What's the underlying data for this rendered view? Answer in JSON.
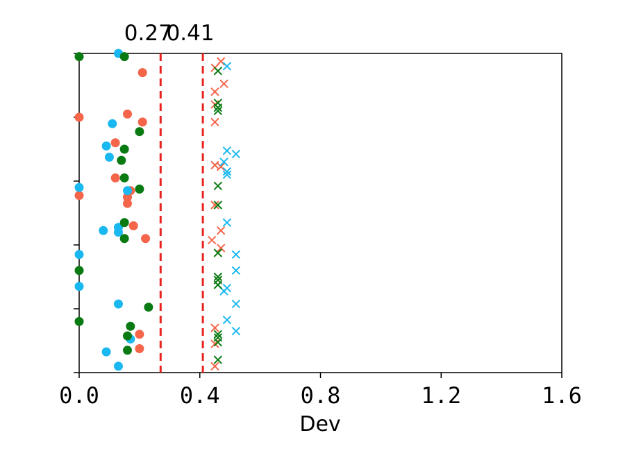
{
  "chart_data": {
    "type": "scatter",
    "xlabel": "Dev",
    "ylabel": "",
    "xlim": [
      0.0,
      1.6
    ],
    "ylim": [
      0,
      100
    ],
    "x_tick_labels": [
      "0.0",
      "0.4",
      "0.8",
      "1.2",
      "1.6"
    ],
    "x_tick_values": [
      0.0,
      0.4,
      0.8,
      1.2,
      1.6
    ],
    "y_tick_values": [
      0,
      20,
      40,
      60,
      80,
      100
    ],
    "y_tick_labels_visible": false,
    "grid": false,
    "legend": "none",
    "reference_lines": [
      {
        "x": 0.27,
        "label": "0.27",
        "color": "#e8231f",
        "style": "dashed"
      },
      {
        "x": 0.41,
        "label": "0.41",
        "color": "#e8231f",
        "style": "dashed"
      }
    ],
    "series": [
      {
        "color": "#f4654a",
        "marker": "circle",
        "points": [
          [
            0.21,
            94
          ],
          [
            0.0,
            80
          ],
          [
            0.16,
            81
          ],
          [
            0.21,
            78.5
          ],
          [
            0.12,
            72
          ],
          [
            0.12,
            61
          ],
          [
            0.17,
            57
          ],
          [
            0.16,
            55
          ],
          [
            0.16,
            53
          ],
          [
            0.0,
            55.5
          ],
          [
            0.18,
            46
          ],
          [
            0.22,
            42
          ],
          [
            0.2,
            12
          ],
          [
            0.2,
            7.5
          ]
        ]
      },
      {
        "color": "#1ab8f0",
        "marker": "circle",
        "points": [
          [
            0.13,
            100
          ],
          [
            0.11,
            78
          ],
          [
            0.09,
            71
          ],
          [
            0.1,
            67.5
          ],
          [
            0.16,
            57
          ],
          [
            0.0,
            58
          ],
          [
            0.13,
            45.5
          ],
          [
            0.08,
            44.5
          ],
          [
            0.13,
            44
          ],
          [
            0.0,
            37
          ],
          [
            0.0,
            27
          ],
          [
            0.13,
            21.5
          ],
          [
            0.17,
            10.5
          ],
          [
            0.09,
            6.5
          ],
          [
            0.13,
            2
          ]
        ]
      },
      {
        "color": "#0a7a12",
        "marker": "circle",
        "points": [
          [
            0.0,
            99
          ],
          [
            0.15,
            99
          ],
          [
            0.2,
            75.5
          ],
          [
            0.15,
            70
          ],
          [
            0.14,
            66.5
          ],
          [
            0.15,
            61
          ],
          [
            0.2,
            57.5
          ],
          [
            0.15,
            47
          ],
          [
            0.15,
            42
          ],
          [
            0.0,
            32
          ],
          [
            0.0,
            16
          ],
          [
            0.23,
            20.5
          ],
          [
            0.17,
            14.5
          ],
          [
            0.16,
            11.5
          ],
          [
            0.16,
            7
          ]
        ]
      },
      {
        "color": "#f4654a",
        "marker": "x",
        "points": [
          [
            0.47,
            97.5
          ],
          [
            0.45,
            95.5
          ],
          [
            0.48,
            90.5
          ],
          [
            0.45,
            88
          ],
          [
            0.45,
            84
          ],
          [
            0.45,
            78.5
          ],
          [
            0.45,
            65
          ],
          [
            0.47,
            64.5
          ],
          [
            0.45,
            52.5
          ],
          [
            0.47,
            44.5
          ],
          [
            0.44,
            41.5
          ],
          [
            0.47,
            39
          ],
          [
            0.45,
            14
          ],
          [
            0.45,
            9
          ],
          [
            0.45,
            2
          ]
        ]
      },
      {
        "color": "#1ab8f0",
        "marker": "x",
        "points": [
          [
            0.49,
            96
          ],
          [
            0.49,
            69.5
          ],
          [
            0.52,
            68.5
          ],
          [
            0.48,
            66
          ],
          [
            0.49,
            62
          ],
          [
            0.49,
            63
          ],
          [
            0.49,
            47
          ],
          [
            0.52,
            37
          ],
          [
            0.52,
            32
          ],
          [
            0.49,
            26.5
          ],
          [
            0.48,
            25.5
          ],
          [
            0.52,
            21.5
          ],
          [
            0.49,
            16.5
          ],
          [
            0.52,
            13
          ]
        ]
      },
      {
        "color": "#0a7a12",
        "marker": "x",
        "points": [
          [
            0.46,
            94.5
          ],
          [
            0.46,
            84.5
          ],
          [
            0.46,
            83
          ],
          [
            0.46,
            82
          ],
          [
            0.46,
            58.5
          ],
          [
            0.46,
            52.5
          ],
          [
            0.46,
            37.5
          ],
          [
            0.46,
            30
          ],
          [
            0.46,
            29
          ],
          [
            0.46,
            27.5
          ],
          [
            0.46,
            12
          ],
          [
            0.46,
            11
          ],
          [
            0.46,
            9.5
          ],
          [
            0.46,
            4
          ]
        ]
      }
    ]
  }
}
